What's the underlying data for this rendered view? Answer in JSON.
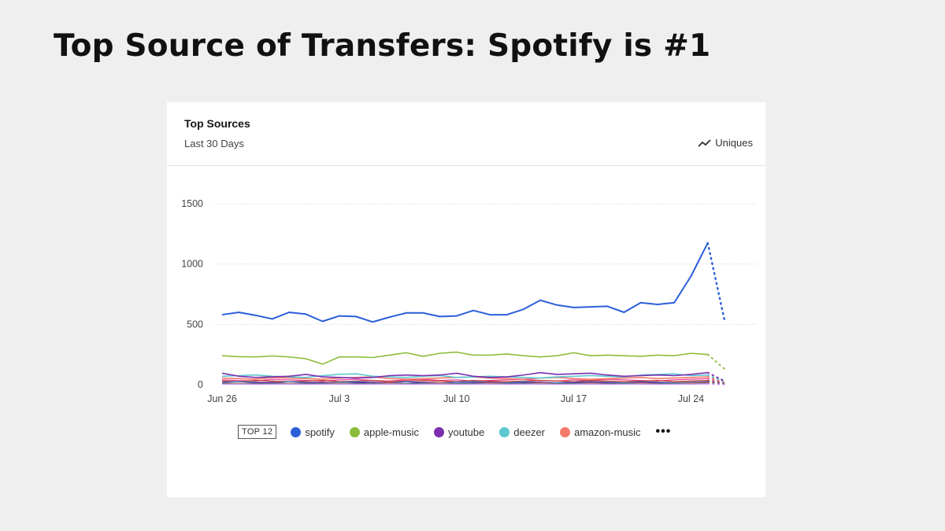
{
  "page": {
    "title": "Top Source of Transfers: Spotify is #1"
  },
  "card": {
    "title": "Top Sources",
    "subtitle": "Last 30 Days",
    "metric_label": "Uniques",
    "metric_icon": "line-chart-icon"
  },
  "legend": {
    "badge": "TOP 12",
    "more_icon": "more-icon",
    "more_label": "•••",
    "items": [
      {
        "label": "spotify",
        "color": "#2b5fd9"
      },
      {
        "label": "apple-music",
        "color": "#8bbd3a"
      },
      {
        "label": "youtube",
        "color": "#7b2fb0"
      },
      {
        "label": "deezer",
        "color": "#5cc8cf"
      },
      {
        "label": "amazon-music",
        "color": "#f47a6a"
      }
    ]
  },
  "chart_data": {
    "type": "line",
    "title": "",
    "xlabel": "",
    "ylabel": "",
    "ylim": [
      0,
      1500
    ],
    "yticks": [
      0,
      500,
      1000,
      1500
    ],
    "grid": true,
    "x": [
      "Jun 26",
      "Jun 27",
      "Jun 28",
      "Jun 29",
      "Jun 30",
      "Jul 1",
      "Jul 2",
      "Jul 3",
      "Jul 4",
      "Jul 5",
      "Jul 6",
      "Jul 7",
      "Jul 8",
      "Jul 9",
      "Jul 10",
      "Jul 11",
      "Jul 12",
      "Jul 13",
      "Jul 14",
      "Jul 15",
      "Jul 16",
      "Jul 17",
      "Jul 18",
      "Jul 19",
      "Jul 20",
      "Jul 21",
      "Jul 22",
      "Jul 23",
      "Jul 24",
      "Jul 25",
      "Jul 26"
    ],
    "xticks": [
      "Jun 26",
      "Jul 3",
      "Jul 10",
      "Jul 17",
      "Jul 24"
    ],
    "series": [
      {
        "name": "spotify",
        "color": "#2b5fd9",
        "values": [
          580,
          600,
          575,
          545,
          600,
          585,
          525,
          570,
          565,
          520,
          560,
          595,
          595,
          565,
          570,
          615,
          580,
          580,
          625,
          700,
          660,
          640,
          645,
          650,
          600,
          680,
          665,
          680,
          900,
          1175,
          535
        ]
      },
      {
        "name": "apple-music",
        "color": "#8bbd3a",
        "values": [
          240,
          232,
          230,
          238,
          230,
          215,
          170,
          230,
          230,
          225,
          245,
          265,
          235,
          260,
          270,
          245,
          245,
          255,
          240,
          230,
          240,
          265,
          240,
          245,
          240,
          235,
          245,
          240,
          260,
          250,
          130
        ]
      },
      {
        "name": "youtube",
        "color": "#7b2fb0",
        "values": [
          95,
          70,
          60,
          65,
          70,
          85,
          65,
          60,
          55,
          60,
          75,
          80,
          75,
          80,
          95,
          70,
          60,
          65,
          80,
          100,
          85,
          90,
          95,
          80,
          70,
          75,
          80,
          75,
          85,
          100,
          30
        ]
      },
      {
        "name": "deezer",
        "color": "#5cc8cf",
        "values": [
          70,
          75,
          80,
          70,
          65,
          60,
          75,
          85,
          90,
          70,
          65,
          60,
          70,
          75,
          60,
          65,
          70,
          65,
          60,
          55,
          65,
          70,
          75,
          70,
          65,
          80,
          85,
          90,
          75,
          80,
          25
        ]
      },
      {
        "name": "amazon-music",
        "color": "#f47a6a",
        "values": [
          55,
          50,
          45,
          60,
          55,
          50,
          45,
          55,
          60,
          65,
          50,
          45,
          50,
          55,
          60,
          65,
          55,
          50,
          45,
          55,
          60,
          50,
          45,
          50,
          55,
          60,
          50,
          55,
          60,
          65,
          20
        ]
      }
    ],
    "minor_series_colors": [
      "#e8489a",
      "#c0392b",
      "#3a7bd5",
      "#6a1b9a",
      "#d4a017",
      "#2e8b57",
      "#c77dff"
    ],
    "minor_series": [
      [
        40,
        35,
        30,
        45,
        40,
        35,
        30,
        40,
        45,
        35,
        30,
        40,
        45,
        35,
        40,
        30,
        35,
        40,
        45,
        35,
        30,
        40,
        35,
        45,
        40,
        35,
        30,
        40,
        45,
        50,
        15
      ],
      [
        30,
        25,
        35,
        30,
        25,
        30,
        35,
        25,
        30,
        35,
        25,
        30,
        35,
        30,
        25,
        35,
        30,
        25,
        30,
        35,
        30,
        25,
        35,
        30,
        25,
        30,
        35,
        25,
        30,
        35,
        10
      ],
      [
        20,
        25,
        20,
        15,
        25,
        20,
        15,
        20,
        25,
        20,
        15,
        25,
        20,
        15,
        20,
        25,
        20,
        15,
        25,
        20,
        15,
        20,
        25,
        20,
        15,
        25,
        20,
        15,
        20,
        25,
        8
      ],
      [
        15,
        10,
        15,
        20,
        10,
        15,
        20,
        10,
        15,
        20,
        15,
        10,
        20,
        15,
        10,
        15,
        20,
        10,
        15,
        20,
        10,
        15,
        20,
        15,
        10,
        20,
        15,
        10,
        15,
        20,
        5
      ],
      [
        10,
        12,
        8,
        10,
        12,
        8,
        10,
        12,
        8,
        10,
        12,
        8,
        10,
        12,
        8,
        10,
        12,
        8,
        10,
        12,
        8,
        10,
        12,
        8,
        10,
        12,
        8,
        10,
        12,
        14,
        4
      ],
      [
        8,
        6,
        8,
        10,
        6,
        8,
        10,
        6,
        8,
        10,
        6,
        8,
        10,
        6,
        8,
        10,
        6,
        8,
        10,
        6,
        8,
        10,
        6,
        8,
        10,
        6,
        8,
        10,
        6,
        9,
        3
      ],
      [
        5,
        6,
        4,
        5,
        6,
        4,
        5,
        6,
        4,
        5,
        6,
        4,
        5,
        6,
        4,
        5,
        6,
        4,
        5,
        6,
        4,
        5,
        6,
        4,
        5,
        6,
        4,
        5,
        6,
        7,
        2
      ]
    ]
  }
}
